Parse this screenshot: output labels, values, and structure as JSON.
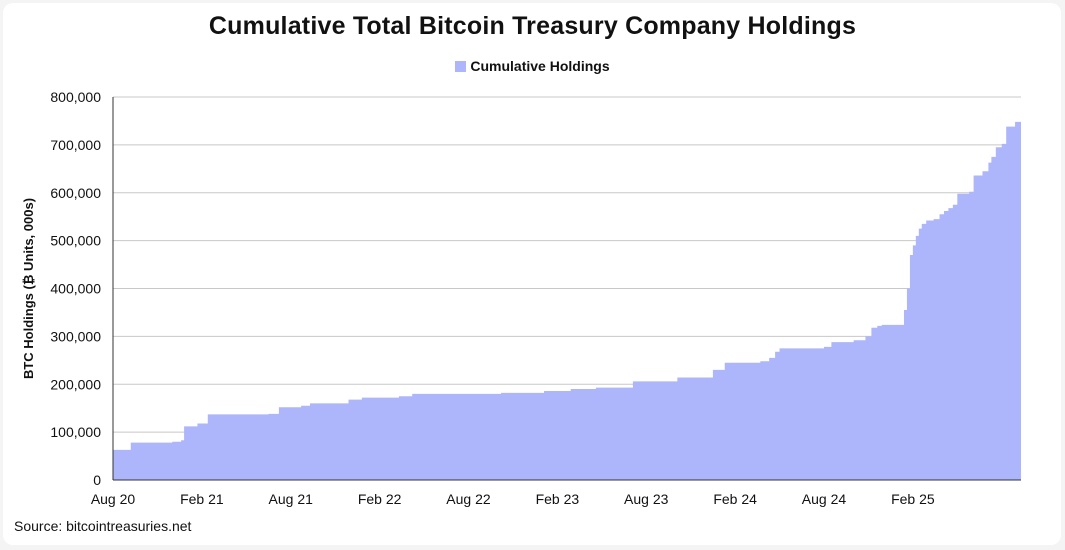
{
  "chart_data": {
    "type": "area",
    "title": "Cumulative Total Bitcoin Treasury Company Holdings",
    "ylabel": "BTC Holdings (₿ Units, 000s)",
    "xlabel": "",
    "ylim": [
      0,
      800000
    ],
    "yticks": [
      0,
      100000,
      200000,
      300000,
      400000,
      500000,
      600000,
      700000,
      800000
    ],
    "ytick_labels": [
      "0",
      "100,000",
      "200,000",
      "300,000",
      "400,000",
      "500,000",
      "600,000",
      "700,000",
      "800,000"
    ],
    "xlim": [
      0,
      61.3
    ],
    "xticks": [
      0,
      6,
      12,
      18,
      24,
      30,
      36,
      42,
      48,
      54
    ],
    "xtick_labels": [
      "Aug 20",
      "Feb 21",
      "Aug 21",
      "Feb 22",
      "Aug 22",
      "Feb 23",
      "Aug 23",
      "Feb 24",
      "Aug 24",
      "Feb 25"
    ],
    "grid": true,
    "legend_position": "top-center",
    "series": [
      {
        "name": "Cumulative Holdings",
        "color": "#adb5fb",
        "step": true,
        "points": [
          [
            0,
            63000
          ],
          [
            1.2,
            78000
          ],
          [
            4,
            80000
          ],
          [
            4.6,
            83000
          ],
          [
            4.8,
            112000
          ],
          [
            5.7,
            118000
          ],
          [
            6.4,
            137000
          ],
          [
            10.5,
            138000
          ],
          [
            11.2,
            152000
          ],
          [
            12.7,
            155000
          ],
          [
            13.3,
            160000
          ],
          [
            15.9,
            168000
          ],
          [
            16.8,
            172000
          ],
          [
            19.3,
            175000
          ],
          [
            20.2,
            180000
          ],
          [
            26.2,
            182000
          ],
          [
            29.1,
            186000
          ],
          [
            30.9,
            190000
          ],
          [
            32.6,
            193000
          ],
          [
            35.1,
            206000
          ],
          [
            38.1,
            214000
          ],
          [
            40.5,
            230000
          ],
          [
            41.3,
            245000
          ],
          [
            43.7,
            248000
          ],
          [
            44.3,
            255000
          ],
          [
            44.7,
            268000
          ],
          [
            45.0,
            275000
          ],
          [
            48.0,
            278000
          ],
          [
            48.5,
            288000
          ],
          [
            50.0,
            292000
          ],
          [
            50.8,
            300000
          ],
          [
            51.2,
            318000
          ],
          [
            51.6,
            322000
          ],
          [
            51.9,
            324000
          ],
          [
            53.4,
            355000
          ],
          [
            53.6,
            400000
          ],
          [
            53.8,
            470000
          ],
          [
            54.0,
            490000
          ],
          [
            54.2,
            510000
          ],
          [
            54.4,
            525000
          ],
          [
            54.6,
            535000
          ],
          [
            54.9,
            542000
          ],
          [
            55.4,
            545000
          ],
          [
            55.8,
            555000
          ],
          [
            56.1,
            562000
          ],
          [
            56.4,
            568000
          ],
          [
            56.7,
            575000
          ],
          [
            57.0,
            598000
          ],
          [
            57.8,
            602000
          ],
          [
            58.1,
            636000
          ],
          [
            58.7,
            645000
          ],
          [
            59.1,
            663000
          ],
          [
            59.3,
            675000
          ],
          [
            59.6,
            695000
          ],
          [
            60.0,
            702000
          ],
          [
            60.3,
            738000
          ],
          [
            60.9,
            748000
          ],
          [
            61.3,
            752000
          ]
        ]
      }
    ]
  },
  "source": "Source: bitcointreasuries.net"
}
